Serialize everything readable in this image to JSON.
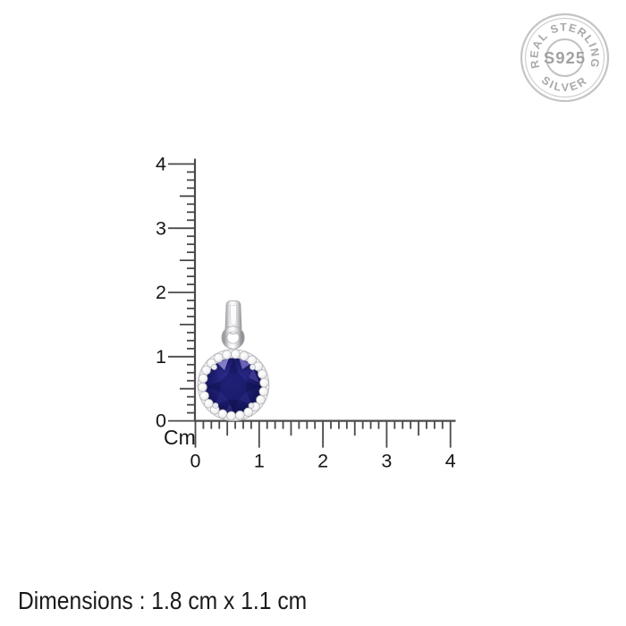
{
  "canvas": {
    "background": "#ffffff"
  },
  "seal": {
    "arc_top": "REAL STERLING",
    "arc_bottom": "SILVER",
    "center": "S925",
    "color": "#a9a9ab"
  },
  "rulers": {
    "unit_label": "Cm",
    "vertical": {
      "labels": [
        "4",
        "3",
        "2",
        "1",
        "0"
      ]
    },
    "horizontal": {
      "labels": [
        "0",
        "1",
        "2",
        "3",
        "4"
      ]
    },
    "tick_color": "#4a4a4a",
    "label_color": "#161616"
  },
  "pendant": {
    "stone_color": "#1c1c6b",
    "stone_highlight_color": "#8e87cf",
    "halo_color": "#f1f1f4",
    "metal_color": "#c6c6c9"
  },
  "footer": {
    "dimensions_label": "Dimensions : 1.8 cm x 1.1 cm"
  }
}
